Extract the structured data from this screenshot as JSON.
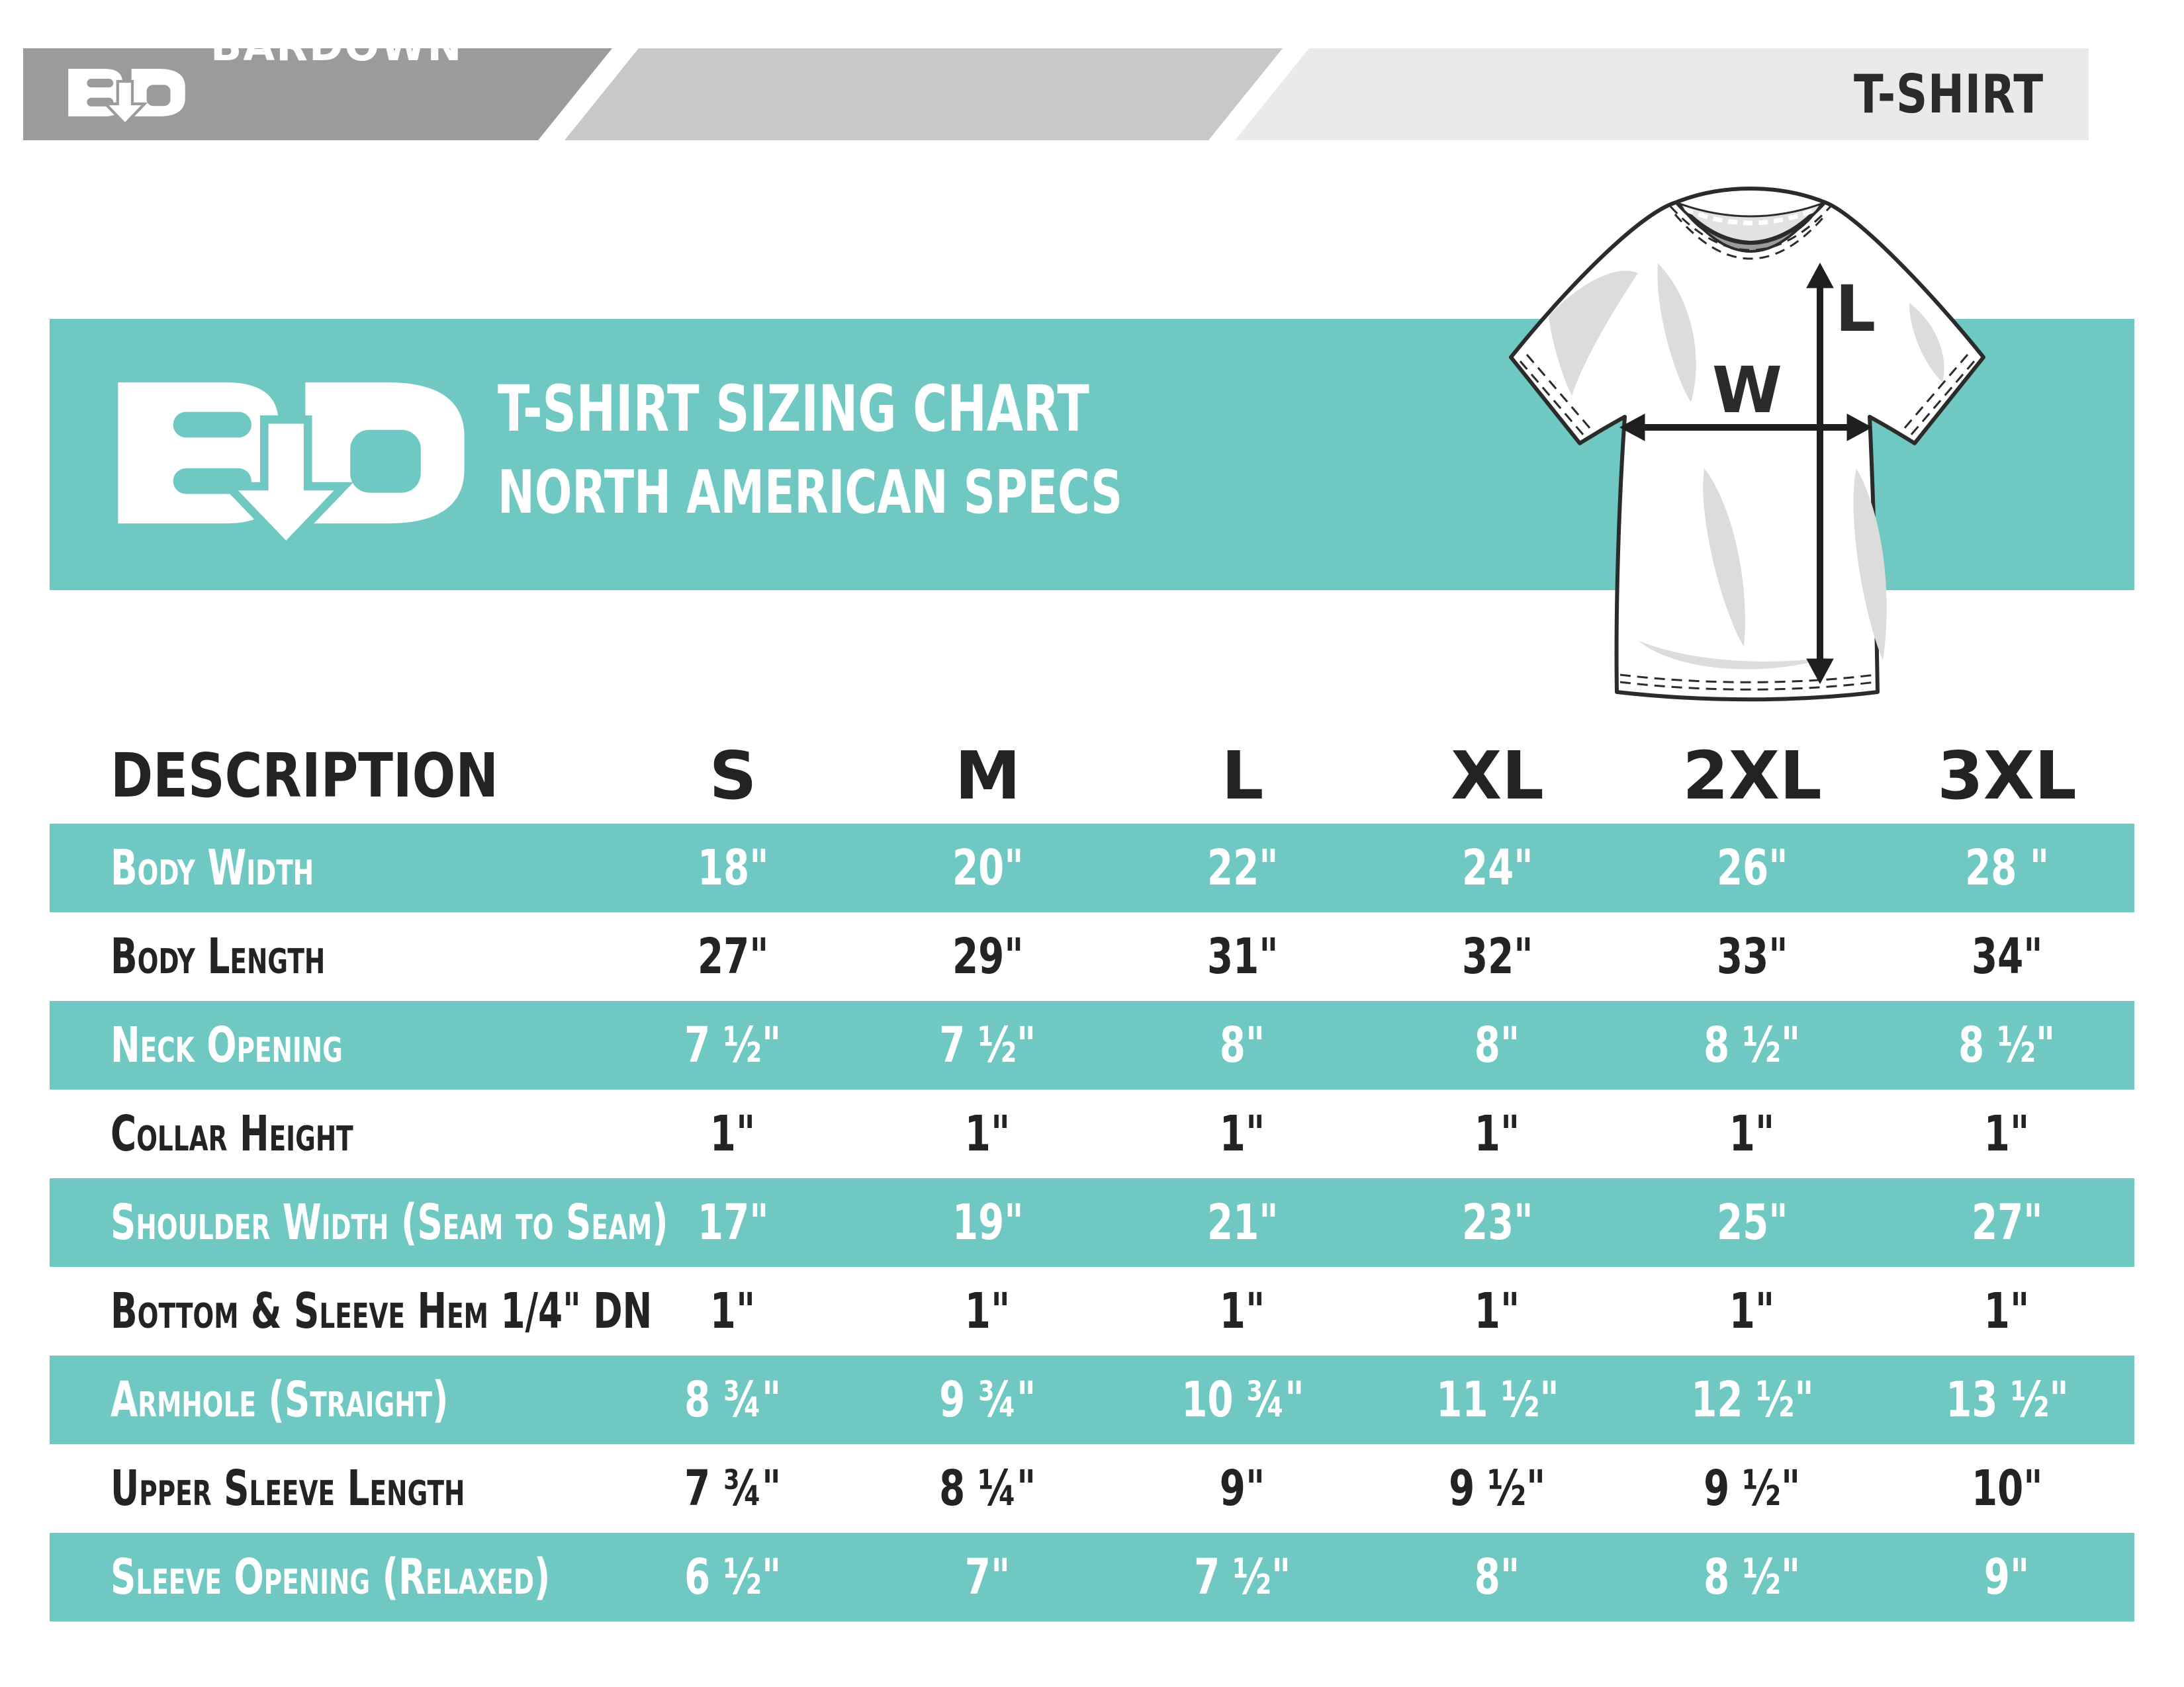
{
  "header": {
    "brand_logo_icon": "bd-down-arrow-logo",
    "brand_name": "BARDOWN",
    "product_label": "T-SHIRT"
  },
  "banner": {
    "logo_icon": "bd-down-arrow-logo",
    "title_line1": "T-SHIRT SIZING CHART",
    "title_line2": "NORTH AMERICAN SPECS"
  },
  "diagram": {
    "width_label": "W",
    "length_label": "L"
  },
  "table": {
    "description_header": "DESCRIPTION",
    "size_headers": [
      "S",
      "M",
      "L",
      "XL",
      "2XL",
      "3XL"
    ],
    "rows": [
      {
        "label": "Body Width",
        "values": [
          "18\"",
          "20\"",
          "22\"",
          "24\"",
          "26\"",
          "28 \""
        ]
      },
      {
        "label": "Body Length",
        "values": [
          "27\"",
          "29\"",
          "31\"",
          "32\"",
          "33\"",
          "34\""
        ]
      },
      {
        "label": "Neck Opening",
        "values": [
          "7 ½\"",
          "7 ½\"",
          "8\"",
          "8\"",
          "8 ½\"",
          "8 ½\""
        ]
      },
      {
        "label": "Collar Height",
        "values": [
          "1\"",
          "1\"",
          "1\"",
          "1\"",
          "1\"",
          "1\""
        ]
      },
      {
        "label": "Shoulder Width (Seam to Seam)",
        "values": [
          "17\"",
          "19\"",
          "21\"",
          "23\"",
          "25\"",
          "27\""
        ]
      },
      {
        "label": "Bottom & Sleeve Hem 1/4\" DN",
        "values": [
          "1\"",
          "1\"",
          "1\"",
          "1\"",
          "1\"",
          "1\""
        ]
      },
      {
        "label": "Armhole (Straight)",
        "values": [
          "8 ¾\"",
          "9 ¾\"",
          "10 ¾\"",
          "11 ½\"",
          "12 ½\"",
          "13 ½\""
        ]
      },
      {
        "label": "Upper Sleeve Length",
        "values": [
          "7 ¾\"",
          "8 ¼\"",
          "9\"",
          "9 ½\"",
          "9 ½\"",
          "10\""
        ]
      },
      {
        "label": "Sleeve Opening (Relaxed)",
        "values": [
          "6 ½\"",
          "7\"",
          "7 ½\"",
          "8\"",
          "8 ½\"",
          "9\""
        ]
      }
    ]
  },
  "colors": {
    "teal": "#6FC8C2",
    "header_dark_gray": "#9B9B9B",
    "header_medium_gray": "#C8C8C8",
    "header_light_gray": "#EAEAEA",
    "ink": "#232323"
  }
}
